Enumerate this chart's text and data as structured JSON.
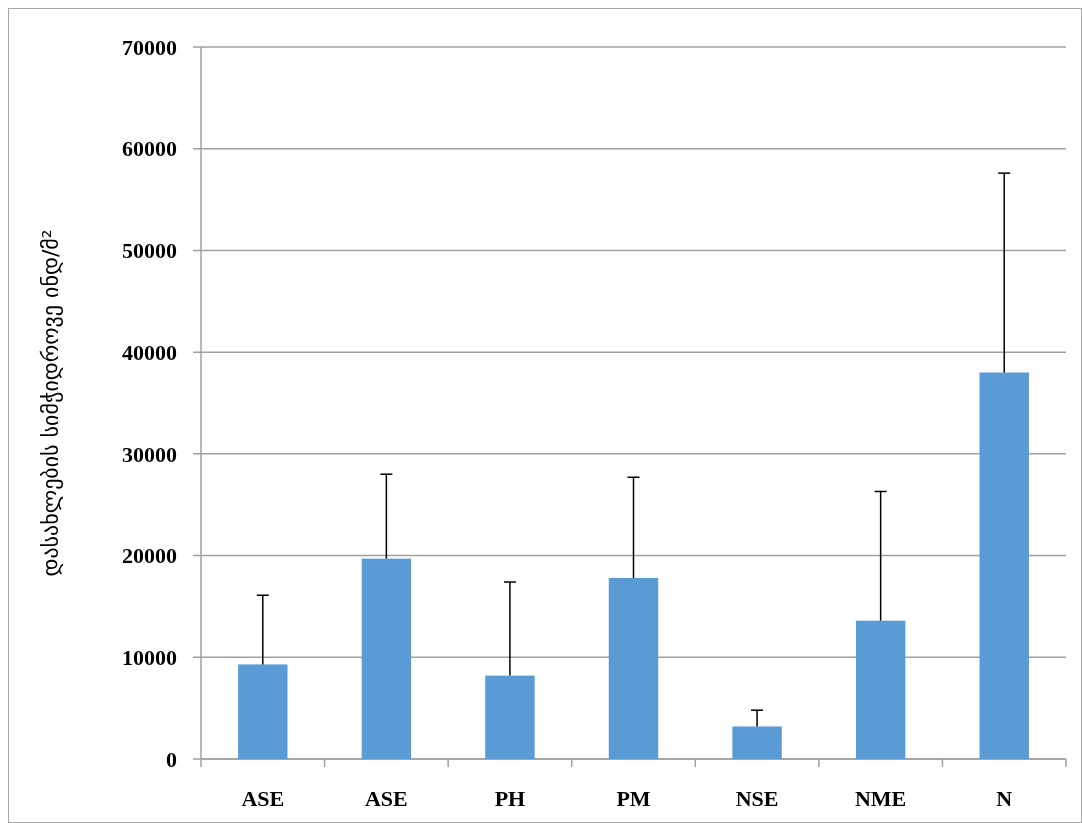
{
  "chart_data": {
    "type": "bar",
    "ylabel": "დასახლების სიმჭიდროვე ინდ/მ²",
    "categories": [
      "ASE",
      "ASE",
      "PH",
      "PM",
      "NSE",
      "NME",
      "N"
    ],
    "values": [
      9300,
      19700,
      8200,
      17800,
      3200,
      13600,
      38000
    ],
    "errors": [
      [
        9300,
        16100
      ],
      [
        19700,
        28000
      ],
      [
        8200,
        17400
      ],
      [
        17800,
        27700
      ],
      [
        3200,
        4800
      ],
      [
        13600,
        26300
      ],
      [
        38000,
        57600
      ]
    ],
    "color": "#5b9bd5",
    "ylim": [
      0,
      70000
    ],
    "yticks": [
      0,
      10000,
      20000,
      30000,
      40000,
      50000,
      60000,
      70000
    ],
    "grid": "y"
  }
}
